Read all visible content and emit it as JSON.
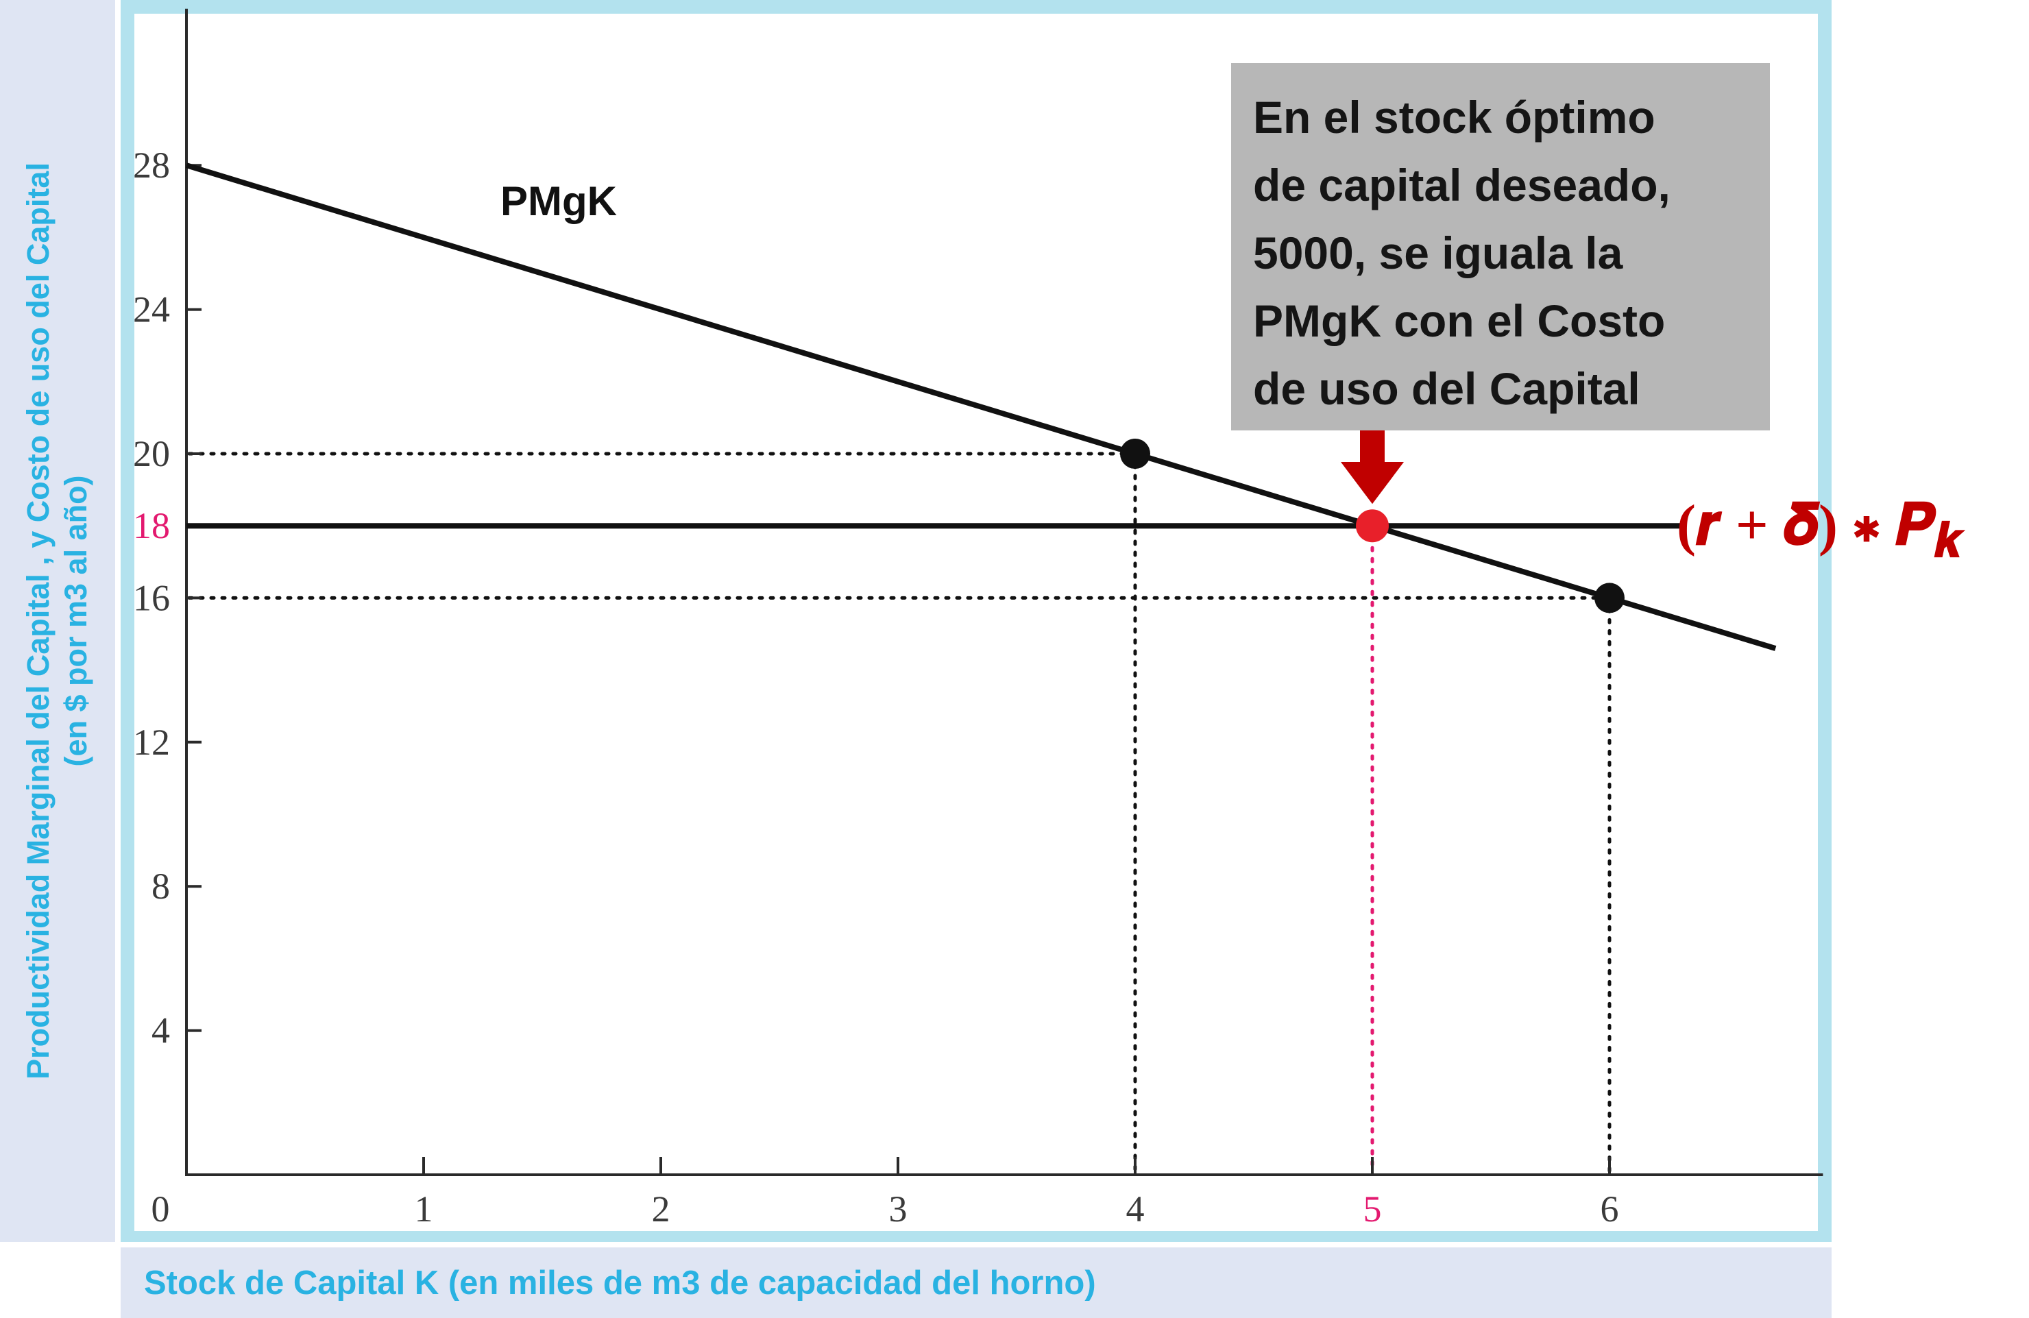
{
  "y_axis_title": {
    "line1": "Productividad Marginal del Capital , y Costo de uso del Capital",
    "line2": "(en $ por m3 al año)"
  },
  "x_axis_title": "Stock de Capital  K (en miles de m3 de capacidad del horno)",
  "callout": {
    "lines": [
      "En el stock óptimo",
      "de capital deseado,",
      "5000, se iguala la",
      "PMgK con el Costo",
      "de uso del Capital"
    ],
    "arrow_color": "#c00000"
  },
  "formula_label": "(r + δ) ∗ P_k",
  "formula_parts": {
    "main": "(𝒓 + 𝜹) ∗ 𝑷",
    "sub": "𝒌"
  },
  "colors": {
    "axis_title": "#29b2e2",
    "plot_frame": "#b3e2ee",
    "strip_background": "#dfe5f3",
    "highlight": "#e3196f",
    "optimum_point": "#e8202a",
    "formula": "#c00000",
    "line": "#111111"
  },
  "chart_data": {
    "type": "line",
    "xlim": [
      0,
      6.9
    ],
    "ylim": [
      0,
      32
    ],
    "x_ticks": [
      "0",
      "1",
      "2",
      "3",
      "4",
      "5",
      "6"
    ],
    "y_ticks": [
      "4",
      "8",
      "12",
      "16",
      "18",
      "20",
      "24",
      "28"
    ],
    "highlighted_ticks": {
      "x": "5",
      "y": "18"
    },
    "grid": false,
    "series": [
      {
        "name": "PMgK",
        "x": [
          0,
          6.7
        ],
        "y": [
          28,
          14.6
        ]
      },
      {
        "name": "(r + δ) ∗ P_k",
        "x": [
          0,
          6.3
        ],
        "y": [
          18,
          18
        ]
      }
    ],
    "points": [
      {
        "x": 4,
        "y": 20
      },
      {
        "x": 5,
        "y": 18,
        "highlight": true
      },
      {
        "x": 6,
        "y": 16
      }
    ],
    "guides": [
      {
        "x": 4,
        "y": 20
      },
      {
        "x": 5,
        "y": 18,
        "highlight": true
      },
      {
        "x": 6,
        "y": 16
      }
    ]
  }
}
